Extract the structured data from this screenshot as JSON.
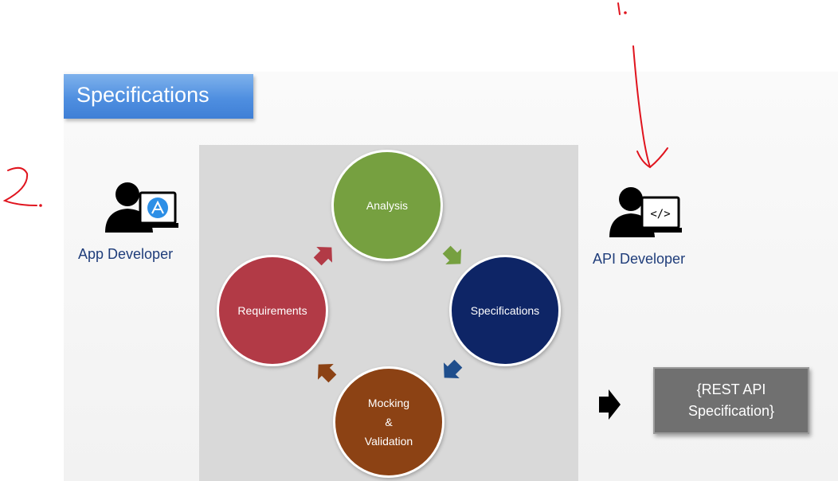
{
  "title": "Specifications",
  "cycle": {
    "analysis": "Analysis",
    "specifications": "Specifications",
    "mocking_line1": "Mocking",
    "mocking_line2": "&",
    "mocking_line3": "Validation",
    "requirements": "Requirements"
  },
  "app_developer": {
    "label": "App Developer",
    "icon": "app-store-monitor-icon"
  },
  "api_developer": {
    "label": "API Developer",
    "icon": "code-monitor-icon",
    "code_glyph": "</>"
  },
  "rest_box": {
    "line1": "{REST API",
    "line2": "Specification}"
  },
  "colors": {
    "analysis": "#76a040",
    "specifications": "#0e2566",
    "mocking": "#8c4214",
    "requirements": "#b23a46",
    "annotation": "#e0141e"
  }
}
